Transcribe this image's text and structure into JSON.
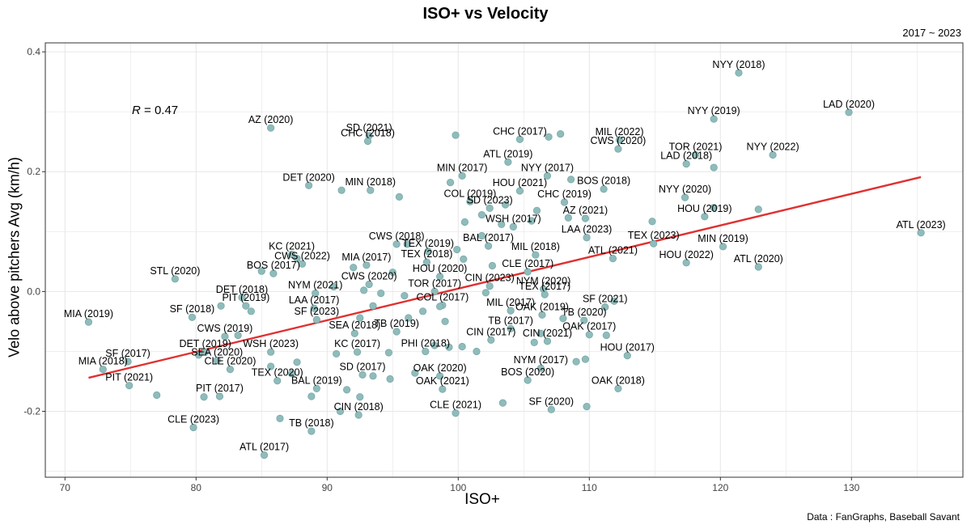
{
  "header": {
    "title": "ISO+ vs Velocity",
    "subtitle": "2017 ~ 2023",
    "caption": "Data : FanGraphs, Baseball Savant"
  },
  "annotation": {
    "r_symbol": "R",
    "r_value": " = 0.47"
  },
  "colors": {
    "point": "#8fbcbb",
    "point_stroke": "#7aa9a8",
    "trend": "#e03030",
    "grid": "#e6e6e6"
  },
  "chart_data": {
    "type": "scatter",
    "title": "ISO+ vs Velocity",
    "xlabel": "ISO+",
    "ylabel": "Velo above pitchers Avg (km/h)",
    "xlim": [
      68.5,
      138.5
    ],
    "ylim": [
      -0.31,
      0.415
    ],
    "xticks": [
      70,
      80,
      90,
      100,
      110,
      120,
      130
    ],
    "yticks": [
      -0.2,
      0.0,
      0.2,
      0.4
    ],
    "xtick_labels": [
      "70",
      "80",
      "90",
      "100",
      "110",
      "120",
      "130"
    ],
    "ytick_labels": [
      "-0.2",
      "0.0",
      "0.2",
      "0.4"
    ],
    "grid": true,
    "correlation": 0.47,
    "trend_line": {
      "x": [
        71.8,
        135.3
      ],
      "y": [
        -0.144,
        0.191
      ]
    },
    "points": [
      {
        "label": "NYY (2018)",
        "x": 121.4,
        "y": 0.365
      },
      {
        "label": "LAD (2020)",
        "x": 129.8,
        "y": 0.299
      },
      {
        "label": "NYY (2019)",
        "x": 119.5,
        "y": 0.288
      },
      {
        "label": "AZ (2020)",
        "x": 85.7,
        "y": 0.273
      },
      {
        "label": "SD (2021)",
        "x": 93.2,
        "y": 0.26
      },
      {
        "label": "CHC (2018)",
        "x": 93.1,
        "y": 0.251
      },
      {
        "label": "",
        "x": 99.8,
        "y": 0.261
      },
      {
        "label": "CHC (2017)",
        "x": 104.7,
        "y": 0.254
      },
      {
        "label": "",
        "x": 106.9,
        "y": 0.258
      },
      {
        "label": "",
        "x": 107.8,
        "y": 0.263
      },
      {
        "label": "MIL (2022)",
        "x": 112.3,
        "y": 0.253
      },
      {
        "label": "CWS (2020)",
        "x": 112.2,
        "y": 0.238
      },
      {
        "label": "TOR (2021)",
        "x": 118.1,
        "y": 0.228
      },
      {
        "label": "NYY (2022)",
        "x": 124,
        "y": 0.228
      },
      {
        "label": "LAD (2018)",
        "x": 117.4,
        "y": 0.213
      },
      {
        "label": "",
        "x": 119.5,
        "y": 0.207
      },
      {
        "label": "ATL (2019)",
        "x": 103.8,
        "y": 0.216
      },
      {
        "label": "MIN (2017)",
        "x": 100.3,
        "y": 0.193
      },
      {
        "label": "NYY (2017)",
        "x": 106.8,
        "y": 0.193
      },
      {
        "label": "",
        "x": 108.6,
        "y": 0.187
      },
      {
        "label": "",
        "x": 99.4,
        "y": 0.182
      },
      {
        "label": "DET (2020)",
        "x": 88.6,
        "y": 0.177
      },
      {
        "label": "MIN (2018)",
        "x": 93.3,
        "y": 0.169
      },
      {
        "label": "",
        "x": 91.1,
        "y": 0.169
      },
      {
        "label": "",
        "x": 95.5,
        "y": 0.158
      },
      {
        "label": "HOU (2021)",
        "x": 104.7,
        "y": 0.168
      },
      {
        "label": "BOS (2018)",
        "x": 111.1,
        "y": 0.171
      },
      {
        "label": "NYY (2020)",
        "x": 117.3,
        "y": 0.157
      },
      {
        "label": "COL (2019)",
        "x": 100.9,
        "y": 0.15
      },
      {
        "label": "SD (2023)",
        "x": 102.4,
        "y": 0.139
      },
      {
        "label": "CHC (2019)",
        "x": 108.1,
        "y": 0.149
      },
      {
        "label": "",
        "x": 103.6,
        "y": 0.145
      },
      {
        "label": "",
        "x": 106,
        "y": 0.135
      },
      {
        "label": "",
        "x": 101.8,
        "y": 0.128
      },
      {
        "label": "AZ (2021)",
        "x": 109.7,
        "y": 0.122
      },
      {
        "label": "",
        "x": 108.4,
        "y": 0.123
      },
      {
        "label": "HOU (2019)",
        "x": 118.8,
        "y": 0.125
      },
      {
        "label": "",
        "x": 119.5,
        "y": 0.14
      },
      {
        "label": "",
        "x": 122.9,
        "y": 0.137
      },
      {
        "label": "",
        "x": 114.8,
        "y": 0.117
      },
      {
        "label": "WSH (2017)",
        "x": 104.2,
        "y": 0.108
      },
      {
        "label": "",
        "x": 105.6,
        "y": 0.118
      },
      {
        "label": "",
        "x": 100.5,
        "y": 0.116
      },
      {
        "label": "",
        "x": 103.3,
        "y": 0.112
      },
      {
        "label": "LAA (2023)",
        "x": 109.8,
        "y": 0.09
      },
      {
        "label": "ATL (2023)",
        "x": 135.3,
        "y": 0.098
      },
      {
        "label": "TEX (2023)",
        "x": 114.9,
        "y": 0.08
      },
      {
        "label": "MIN (2019)",
        "x": 120.2,
        "y": 0.075
      },
      {
        "label": "",
        "x": 101.8,
        "y": 0.093
      },
      {
        "label": "BAL (2017)",
        "x": 102.3,
        "y": 0.076
      },
      {
        "label": "CWS (2018)",
        "x": 95.3,
        "y": 0.079
      },
      {
        "label": "TEX (2019)",
        "x": 97.7,
        "y": 0.067
      },
      {
        "label": "",
        "x": 96.1,
        "y": 0.079
      },
      {
        "label": "",
        "x": 99.9,
        "y": 0.07
      },
      {
        "label": "MIL (2018)",
        "x": 105.9,
        "y": 0.061
      },
      {
        "label": "ATL (2021)",
        "x": 111.8,
        "y": 0.055
      },
      {
        "label": "HOU (2022)",
        "x": 117.4,
        "y": 0.048
      },
      {
        "label": "ATL (2020)",
        "x": 122.9,
        "y": 0.041
      },
      {
        "label": "KC (2021)",
        "x": 87.3,
        "y": 0.062
      },
      {
        "label": "CWS (2022)",
        "x": 88.1,
        "y": 0.046
      },
      {
        "label": "",
        "x": 87.7,
        "y": 0.055
      },
      {
        "label": "MIA (2017)",
        "x": 93,
        "y": 0.044
      },
      {
        "label": "",
        "x": 92,
        "y": 0.04
      },
      {
        "label": "TEX (2018)",
        "x": 97.6,
        "y": 0.049
      },
      {
        "label": "",
        "x": 100.4,
        "y": 0.054
      },
      {
        "label": "",
        "x": 102.6,
        "y": 0.043
      },
      {
        "label": "BOS (2017)",
        "x": 85.9,
        "y": 0.03
      },
      {
        "label": "",
        "x": 85,
        "y": 0.034
      },
      {
        "label": "STL (2020)",
        "x": 78.4,
        "y": 0.021
      },
      {
        "label": "HOU (2020)",
        "x": 98.6,
        "y": 0.025
      },
      {
        "label": "",
        "x": 95,
        "y": 0.032
      },
      {
        "label": "CLE (2017)",
        "x": 105.3,
        "y": 0.033
      },
      {
        "label": "CWS (2020)",
        "x": 93.2,
        "y": 0.012
      },
      {
        "label": "",
        "x": 90.5,
        "y": 0.008
      },
      {
        "label": "CIN (2023)",
        "x": 102.4,
        "y": 0.009
      },
      {
        "label": "NYM (2020)",
        "x": 106.5,
        "y": 0.004
      },
      {
        "label": "",
        "x": 92.8,
        "y": 0.002
      },
      {
        "label": "TOR (2017)",
        "x": 98.2,
        "y": 0.0
      },
      {
        "label": "",
        "x": 94.1,
        "y": -0.003
      },
      {
        "label": "",
        "x": 95.9,
        "y": -0.007
      },
      {
        "label": "",
        "x": 102.1,
        "y": -0.002
      },
      {
        "label": "TEX (2017)",
        "x": 106.6,
        "y": -0.005
      },
      {
        "label": "DET (2018)",
        "x": 83.5,
        "y": -0.01
      },
      {
        "label": "NYM (2021)",
        "x": 89.1,
        "y": -0.003
      },
      {
        "label": "PIT (2019)",
        "x": 83.8,
        "y": -0.024
      },
      {
        "label": "",
        "x": 81.9,
        "y": -0.024
      },
      {
        "label": "",
        "x": 84.2,
        "y": -0.033
      },
      {
        "label": "SF (2021)",
        "x": 111.2,
        "y": -0.026
      },
      {
        "label": "",
        "x": 111.9,
        "y": -0.016
      },
      {
        "label": "COL (2017)",
        "x": 98.8,
        "y": -0.023
      },
      {
        "label": "",
        "x": 97.3,
        "y": -0.033
      },
      {
        "label": "LAA (2017)",
        "x": 89,
        "y": -0.028
      },
      {
        "label": "",
        "x": 93.5,
        "y": -0.024
      },
      {
        "label": "",
        "x": 98.6,
        "y": -0.025
      },
      {
        "label": "MIL (2017)",
        "x": 104,
        "y": -0.032
      },
      {
        "label": "OAK (2019)",
        "x": 106.4,
        "y": -0.039
      },
      {
        "label": "MIA (2019)",
        "x": 71.8,
        "y": -0.051
      },
      {
        "label": "SF (2018)",
        "x": 79.7,
        "y": -0.043
      },
      {
        "label": "SF (2023)",
        "x": 89.2,
        "y": -0.047
      },
      {
        "label": "",
        "x": 92.5,
        "y": -0.044
      },
      {
        "label": "",
        "x": 96.2,
        "y": -0.044
      },
      {
        "label": "TB (2019)",
        "x": 95.3,
        "y": -0.067
      },
      {
        "label": "TB (2017)",
        "x": 104,
        "y": -0.062
      },
      {
        "label": "TB (2020)",
        "x": 109.6,
        "y": -0.048
      },
      {
        "label": "",
        "x": 108,
        "y": -0.045
      },
      {
        "label": "",
        "x": 99,
        "y": -0.05
      },
      {
        "label": "CWS (2019)",
        "x": 82.2,
        "y": -0.075
      },
      {
        "label": "",
        "x": 83.2,
        "y": -0.073
      },
      {
        "label": "SEA (2018)",
        "x": 92.1,
        "y": -0.07
      },
      {
        "label": "OAK (2017)",
        "x": 110,
        "y": -0.072
      },
      {
        "label": "",
        "x": 111.3,
        "y": -0.073
      },
      {
        "label": "",
        "x": 106.3,
        "y": -0.07
      },
      {
        "label": "CIN (2017)",
        "x": 102.5,
        "y": -0.081
      },
      {
        "label": "CIN (2021)",
        "x": 106.8,
        "y": -0.083
      },
      {
        "label": "",
        "x": 98.2,
        "y": -0.09
      },
      {
        "label": "",
        "x": 100.3,
        "y": -0.092
      },
      {
        "label": "",
        "x": 105.8,
        "y": -0.085
      },
      {
        "label": "WSH (2023)",
        "x": 85.7,
        "y": -0.101
      },
      {
        "label": "KC (2017)",
        "x": 92.3,
        "y": -0.101
      },
      {
        "label": "",
        "x": 90.7,
        "y": -0.104
      },
      {
        "label": "",
        "x": 94.7,
        "y": -0.102
      },
      {
        "label": "DET (2019)",
        "x": 80.7,
        "y": -0.101
      },
      {
        "label": "",
        "x": 80.2,
        "y": -0.106
      },
      {
        "label": "PHI (2018)",
        "x": 97.5,
        "y": -0.1
      },
      {
        "label": "",
        "x": 99.3,
        "y": -0.093
      },
      {
        "label": "",
        "x": 101.4,
        "y": -0.1
      },
      {
        "label": "HOU (2017)",
        "x": 112.9,
        "y": -0.107
      },
      {
        "label": "",
        "x": 109.7,
        "y": -0.113
      },
      {
        "label": "",
        "x": 109,
        "y": -0.117
      },
      {
        "label": "SF (2017)",
        "x": 74.8,
        "y": -0.117
      },
      {
        "label": "SEA (2020)",
        "x": 81.6,
        "y": -0.115
      },
      {
        "label": "CLE (2020)",
        "x": 82.6,
        "y": -0.13
      },
      {
        "label": "MIA (2018)",
        "x": 72.9,
        "y": -0.13
      },
      {
        "label": "",
        "x": 87.7,
        "y": -0.118
      },
      {
        "label": "",
        "x": 85.7,
        "y": -0.125
      },
      {
        "label": "SD (2017)",
        "x": 92.7,
        "y": -0.139
      },
      {
        "label": "",
        "x": 93.5,
        "y": -0.141
      },
      {
        "label": "",
        "x": 94.8,
        "y": -0.146
      },
      {
        "label": "TEX (2020)",
        "x": 86.2,
        "y": -0.149
      },
      {
        "label": "",
        "x": 87.3,
        "y": -0.137
      },
      {
        "label": "NYM (2017)",
        "x": 106.3,
        "y": -0.128
      },
      {
        "label": "",
        "x": 96.7,
        "y": -0.136
      },
      {
        "label": "OAK (2020)",
        "x": 98.6,
        "y": -0.141
      },
      {
        "label": "BOS (2020)",
        "x": 105.3,
        "y": -0.148
      },
      {
        "label": "PIT (2021)",
        "x": 74.9,
        "y": -0.157
      },
      {
        "label": "BAL (2019)",
        "x": 89.2,
        "y": -0.162
      },
      {
        "label": "",
        "x": 88.8,
        "y": -0.175
      },
      {
        "label": "",
        "x": 91.5,
        "y": -0.164
      },
      {
        "label": "OAK (2021)",
        "x": 98.8,
        "y": -0.163
      },
      {
        "label": "OAK (2018)",
        "x": 112.2,
        "y": -0.162
      },
      {
        "label": "PIT (2017)",
        "x": 81.8,
        "y": -0.175
      },
      {
        "label": "",
        "x": 80.6,
        "y": -0.176
      },
      {
        "label": "",
        "x": 77,
        "y": -0.173
      },
      {
        "label": "",
        "x": 92.5,
        "y": -0.176
      },
      {
        "label": "CIN (2018)",
        "x": 92.4,
        "y": -0.206
      },
      {
        "label": "",
        "x": 91,
        "y": -0.2
      },
      {
        "label": "CLE (2021)",
        "x": 99.8,
        "y": -0.203
      },
      {
        "label": "",
        "x": 103.4,
        "y": -0.186
      },
      {
        "label": "SF (2020)",
        "x": 107.1,
        "y": -0.197
      },
      {
        "label": "",
        "x": 109.8,
        "y": -0.192
      },
      {
        "label": "CLE (2023)",
        "x": 79.8,
        "y": -0.227
      },
      {
        "label": "TB (2018)",
        "x": 88.8,
        "y": -0.233
      },
      {
        "label": "",
        "x": 86.4,
        "y": -0.212
      },
      {
        "label": "ATL (2017)",
        "x": 85.2,
        "y": -0.273
      }
    ]
  }
}
